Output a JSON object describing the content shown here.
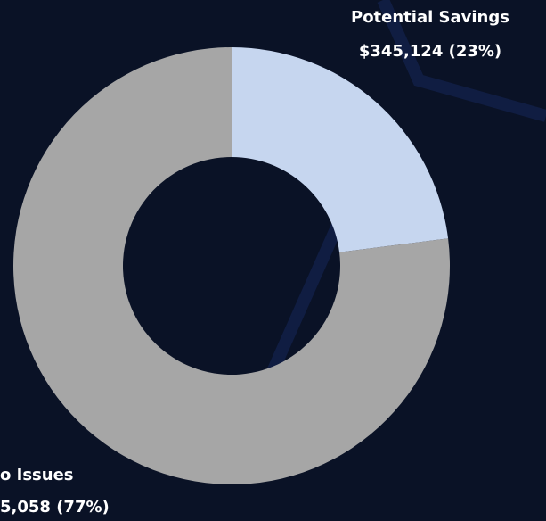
{
  "chart_data": {
    "type": "donut",
    "categories": [
      "Potential Savings",
      "o Issues"
    ],
    "values": [
      23,
      77
    ],
    "value_labels": [
      "$345,124 (23%)",
      "5,058 (77%)"
    ],
    "colors": [
      "#c6d6ef",
      "#a6a6a6"
    ]
  }
}
